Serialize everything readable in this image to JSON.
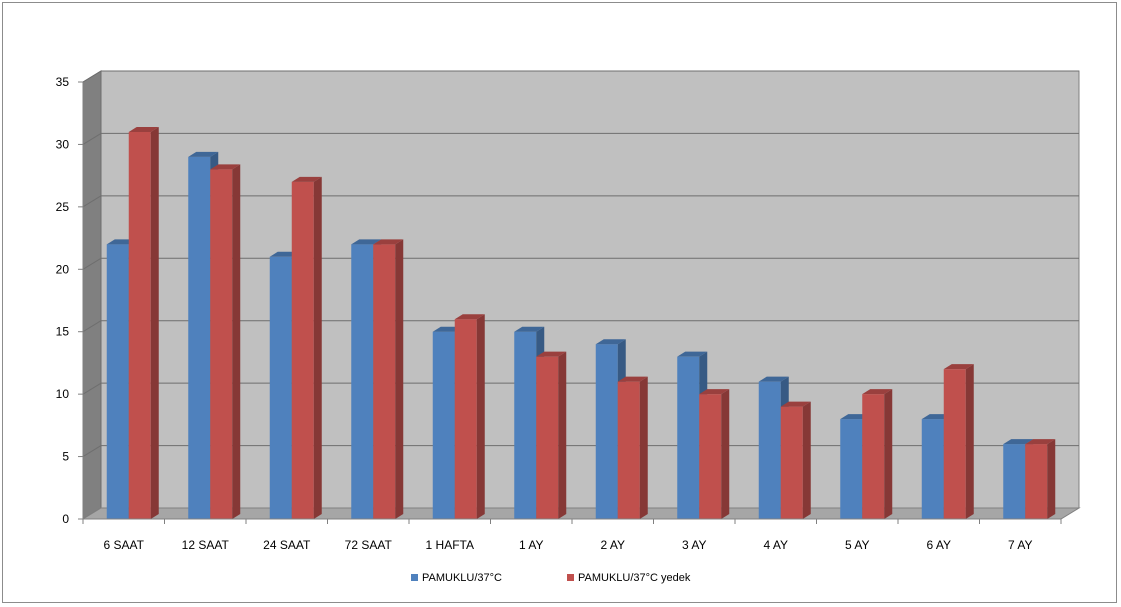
{
  "chart_data": {
    "type": "bar",
    "categories": [
      "6 SAAT",
      "12 SAAT",
      "24 SAAT",
      "72 SAAT",
      "1 HAFTA",
      "1 AY",
      "2 AY",
      "3 AY",
      "4 AY",
      "5 AY",
      "6 AY",
      "7 AY"
    ],
    "series": [
      {
        "name": "PAMUKLU/37°C",
        "values": [
          22,
          29,
          21,
          22,
          15,
          15,
          14,
          13,
          11,
          8,
          8,
          6
        ]
      },
      {
        "name": "PAMUKLU/37°C yedek",
        "values": [
          31,
          28,
          27,
          22,
          16,
          13,
          11,
          10,
          9,
          10,
          12,
          6
        ]
      }
    ],
    "yticks": [
      "0",
      "5",
      "10",
      "15",
      "20",
      "25",
      "30",
      "35"
    ],
    "ylim": [
      0,
      35
    ],
    "grid": true,
    "legend_position": "bottom",
    "style": "3d-clustered-column",
    "colors": {
      "series_0": "#4f81bd",
      "series_1": "#c0504d",
      "wall": "#c0c0c0",
      "floor": "#a6a6a6",
      "side_wall": "#808080"
    }
  }
}
